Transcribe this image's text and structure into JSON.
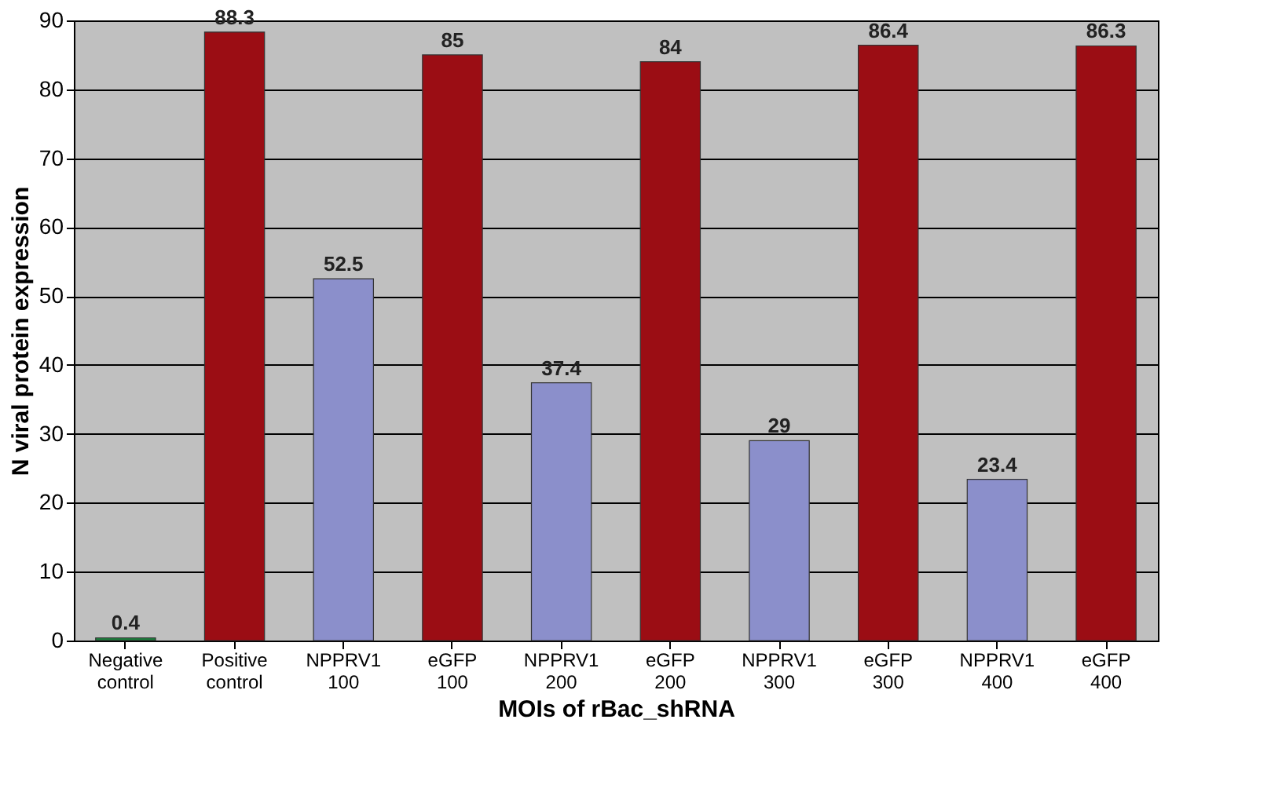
{
  "chart_data": {
    "type": "bar",
    "categories": [
      "Negative control",
      "Positive control",
      "NPPRV1 100",
      "eGFP 100",
      "NPPRV1 200",
      "eGFP 200",
      "NPPRV1 300",
      "eGFP 300",
      "NPPRV1 400",
      "eGFP 400"
    ],
    "values": [
      0.4,
      88.3,
      52.5,
      85,
      37.4,
      84,
      29,
      86.4,
      23.4,
      86.3
    ],
    "colors": [
      "#1e7a3c",
      "#9b0d14",
      "#8b8fcb",
      "#9b0d14",
      "#8b8fcb",
      "#9b0d14",
      "#8b8fcb",
      "#9b0d14",
      "#8b8fcb",
      "#9b0d14"
    ],
    "xlabel": "MOIs of rBac_shRNA",
    "ylabel": "N viral protein expression",
    "ylim": [
      0,
      90
    ],
    "yticks": [
      0,
      10,
      20,
      30,
      40,
      50,
      60,
      70,
      80,
      90
    ],
    "grid": "y",
    "data_labels": true
  }
}
